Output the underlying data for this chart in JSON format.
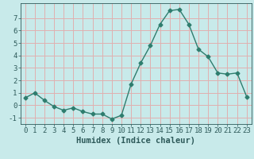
{
  "x": [
    0,
    1,
    2,
    3,
    4,
    5,
    6,
    7,
    8,
    9,
    10,
    11,
    12,
    13,
    14,
    15,
    16,
    17,
    18,
    19,
    20,
    21,
    22,
    23
  ],
  "y": [
    0.6,
    1.0,
    0.4,
    -0.1,
    -0.4,
    -0.2,
    -0.5,
    -0.7,
    -0.7,
    -1.1,
    -0.8,
    1.7,
    3.4,
    4.8,
    6.5,
    7.6,
    7.7,
    6.5,
    4.5,
    3.9,
    2.6,
    2.5,
    2.6,
    0.7
  ],
  "line_color": "#2e7d6e",
  "marker": "D",
  "marker_size": 2.5,
  "bg_color": "#c8eaea",
  "grid_color": "#e0b0b0",
  "xlabel": "Humidex (Indice chaleur)",
  "xlim": [
    -0.5,
    23.5
  ],
  "ylim": [
    -1.5,
    8.2
  ],
  "yticks": [
    -1,
    0,
    1,
    2,
    3,
    4,
    5,
    6,
    7
  ],
  "xticks": [
    0,
    1,
    2,
    3,
    4,
    5,
    6,
    7,
    8,
    9,
    10,
    11,
    12,
    13,
    14,
    15,
    16,
    17,
    18,
    19,
    20,
    21,
    22,
    23
  ],
  "tick_color": "#2e5a5a",
  "label_fontsize": 7.5,
  "tick_fontsize": 6.5
}
